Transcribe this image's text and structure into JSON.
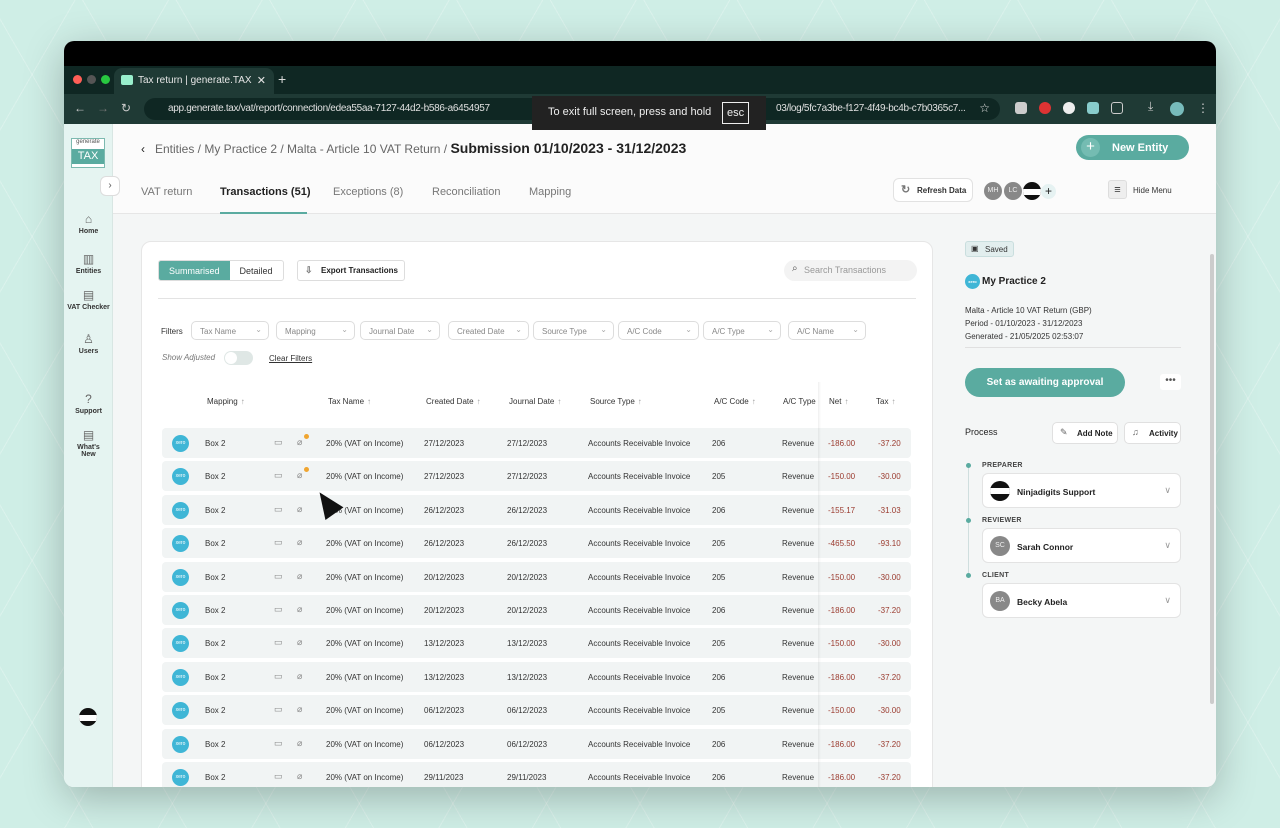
{
  "browser": {
    "tab_title": "Tax return | generate.TAX",
    "url_left": "app.generate.tax/vat/report/connection/edea55aa-7127-44d2-b586-a6454957",
    "url_right": "03/log/5fc7a3be-f127-4f49-bc4b-c7b0365c7...",
    "fullscreen_toast": "To exit full screen, press and hold",
    "esc_key": "esc"
  },
  "sidebar": {
    "logo_top": "generate",
    "logo_bottom": "TAX",
    "items": [
      {
        "label": "Home",
        "icon": "home-icon"
      },
      {
        "label": "Entities",
        "icon": "building-icon"
      },
      {
        "label": "VAT Checker",
        "icon": "document-icon"
      },
      {
        "label": "Users",
        "icon": "user-icon"
      },
      {
        "label": "Support",
        "icon": "help-icon"
      },
      {
        "label": "What's New",
        "icon": "news-icon"
      }
    ]
  },
  "header": {
    "breadcrumb": "Entities / My Practice 2 / Malta - Article 10 VAT Return /",
    "title": "Submission 01/10/2023 - 31/12/2023",
    "new_entity": "New Entity",
    "tabs": [
      "VAT return",
      "Transactions (51)",
      "Exceptions (8)",
      "Reconciliation",
      "Mapping"
    ],
    "active_tab": 1,
    "refresh": "Refresh Data",
    "avatars": [
      "MH",
      "LC"
    ],
    "hide_menu": "Hide Menu"
  },
  "toolbar": {
    "summarised": "Summarised",
    "detailed": "Detailed",
    "export": "Export Transactions",
    "search_placeholder": "Search Transactions"
  },
  "filters": {
    "label": "Filters",
    "items": [
      "Tax Name",
      "Mapping",
      "Journal Date",
      "Created Date",
      "Source Type",
      "A/C Code",
      "A/C Type",
      "A/C Name"
    ],
    "show_adjusted": "Show Adjusted",
    "show_adjusted_on": false,
    "clear": "Clear Filters"
  },
  "table": {
    "columns": [
      "Mapping",
      "Tax Name",
      "Created Date",
      "Journal Date",
      "Source Type",
      "A/C Code",
      "A/C Type",
      "Net",
      "Tax"
    ],
    "rows": [
      {
        "mapping": "Box 2",
        "tax": "20% (VAT on Income)",
        "created": "27/12/2023",
        "journal": "27/12/2023",
        "source": "Accounts Receivable Invoice",
        "code": "206",
        "type": "Revenue",
        "net": "-186.00",
        "vat": "-37.20",
        "attachment_flag": true
      },
      {
        "mapping": "Box 2",
        "tax": "20% (VAT on Income)",
        "created": "27/12/2023",
        "journal": "27/12/2023",
        "source": "Accounts Receivable Invoice",
        "code": "205",
        "type": "Revenue",
        "net": "-150.00",
        "vat": "-30.00",
        "attachment_flag": true
      },
      {
        "mapping": "Box 2",
        "tax": "20% (VAT on Income)",
        "created": "26/12/2023",
        "journal": "26/12/2023",
        "source": "Accounts Receivable Invoice",
        "code": "206",
        "type": "Revenue",
        "net": "-155.17",
        "vat": "-31.03"
      },
      {
        "mapping": "Box 2",
        "tax": "20% (VAT on Income)",
        "created": "26/12/2023",
        "journal": "26/12/2023",
        "source": "Accounts Receivable Invoice",
        "code": "205",
        "type": "Revenue",
        "net": "-465.50",
        "vat": "-93.10"
      },
      {
        "mapping": "Box 2",
        "tax": "20% (VAT on Income)",
        "created": "20/12/2023",
        "journal": "20/12/2023",
        "source": "Accounts Receivable Invoice",
        "code": "205",
        "type": "Revenue",
        "net": "-150.00",
        "vat": "-30.00"
      },
      {
        "mapping": "Box 2",
        "tax": "20% (VAT on Income)",
        "created": "20/12/2023",
        "journal": "20/12/2023",
        "source": "Accounts Receivable Invoice",
        "code": "206",
        "type": "Revenue",
        "net": "-186.00",
        "vat": "-37.20"
      },
      {
        "mapping": "Box 2",
        "tax": "20% (VAT on Income)",
        "created": "13/12/2023",
        "journal": "13/12/2023",
        "source": "Accounts Receivable Invoice",
        "code": "205",
        "type": "Revenue",
        "net": "-150.00",
        "vat": "-30.00"
      },
      {
        "mapping": "Box 2",
        "tax": "20% (VAT on Income)",
        "created": "13/12/2023",
        "journal": "13/12/2023",
        "source": "Accounts Receivable Invoice",
        "code": "206",
        "type": "Revenue",
        "net": "-186.00",
        "vat": "-37.20"
      },
      {
        "mapping": "Box 2",
        "tax": "20% (VAT on Income)",
        "created": "06/12/2023",
        "journal": "06/12/2023",
        "source": "Accounts Receivable Invoice",
        "code": "205",
        "type": "Revenue",
        "net": "-150.00",
        "vat": "-30.00"
      },
      {
        "mapping": "Box 2",
        "tax": "20% (VAT on Income)",
        "created": "06/12/2023",
        "journal": "06/12/2023",
        "source": "Accounts Receivable Invoice",
        "code": "206",
        "type": "Revenue",
        "net": "-186.00",
        "vat": "-37.20"
      },
      {
        "mapping": "Box 2",
        "tax": "20% (VAT on Income)",
        "created": "29/11/2023",
        "journal": "29/11/2023",
        "source": "Accounts Receivable Invoice",
        "code": "206",
        "type": "Revenue",
        "net": "-186.00",
        "vat": "-37.20"
      }
    ]
  },
  "panel": {
    "saved": "Saved",
    "practice": "My Practice 2",
    "return_name": "Malta - Article 10 VAT Return (GBP)",
    "period": "Period - 01/10/2023 - 31/12/2023",
    "generated": "Generated - 21/05/2025 02:53:07",
    "awaiting": "Set as awaiting approval",
    "more": "•••",
    "process": "Process",
    "add_note": "Add Note",
    "activity": "Activity",
    "roles": [
      {
        "role": "PREPARER",
        "name": "Ninjadigits Support",
        "initials": ""
      },
      {
        "role": "REVIEWER",
        "name": "Sarah Connor",
        "initials": "SC"
      },
      {
        "role": "CLIENT",
        "name": "Becky Abela",
        "initials": "BA"
      }
    ]
  },
  "colors": {
    "accent": "#5aaba0",
    "negative": "#9a3a2e",
    "xero": "#3fb6d6"
  }
}
